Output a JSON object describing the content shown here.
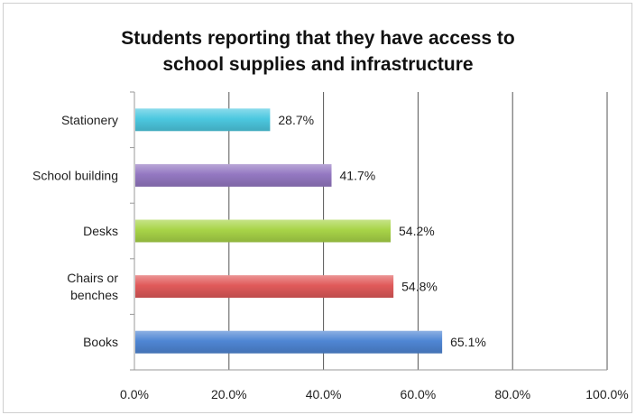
{
  "chart_data": {
    "type": "bar",
    "orientation": "horizontal",
    "title": "Students reporting that they have access to school supplies and infrastructure",
    "title_lines": [
      "Students reporting that they have access to",
      "school supplies and infrastructure"
    ],
    "categories": [
      "Stationery",
      "School building",
      "Desks",
      "Chairs or benches",
      "Books"
    ],
    "category_lines": [
      [
        "Stationery"
      ],
      [
        "School building"
      ],
      [
        "Desks"
      ],
      [
        "Chairs or",
        "benches"
      ],
      [
        "Books"
      ]
    ],
    "values": [
      28.7,
      41.7,
      54.2,
      54.8,
      65.1
    ],
    "value_labels": [
      "28.7%",
      "41.7%",
      "54.2%",
      "54.8%",
      "65.1%"
    ],
    "colors": [
      "#4cc8e0",
      "#9478c2",
      "#a8d448",
      "#e05a5a",
      "#4f86d4"
    ],
    "xlim": [
      0,
      100
    ],
    "xticks": [
      0,
      20,
      40,
      60,
      80,
      100
    ],
    "xtick_labels": [
      "0.0%",
      "20.0%",
      "40.0%",
      "60.0%",
      "80.0%",
      "100.0%"
    ],
    "grid": true,
    "legend": "none"
  }
}
